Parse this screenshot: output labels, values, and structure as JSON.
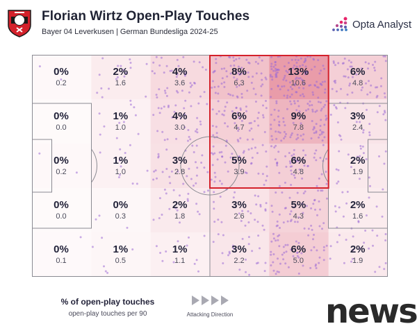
{
  "header": {
    "title": "Florian Wirtz Open-Play Touches",
    "subtitle": "Bayer 04 Leverkusen | German Bundesliga 2024-25",
    "brand": "Opta Analyst",
    "crest_icon": "bayer-leverkusen-crest-icon",
    "brand_icon": "opta-dots-icon"
  },
  "chart_data": {
    "type": "heatmap",
    "columns": 6,
    "rows": 5,
    "grid": [
      [
        {
          "pct": "0%",
          "per90": "0.2"
        },
        {
          "pct": "2%",
          "per90": "1.6"
        },
        {
          "pct": "4%",
          "per90": "3.6"
        },
        {
          "pct": "8%",
          "per90": "6.3"
        },
        {
          "pct": "13%",
          "per90": "10.6"
        },
        {
          "pct": "6%",
          "per90": "4.8"
        }
      ],
      [
        {
          "pct": "0%",
          "per90": "0.0"
        },
        {
          "pct": "1%",
          "per90": "1.0"
        },
        {
          "pct": "4%",
          "per90": "3.0"
        },
        {
          "pct": "6%",
          "per90": "4.7"
        },
        {
          "pct": "9%",
          "per90": "7.8"
        },
        {
          "pct": "3%",
          "per90": "2.4"
        }
      ],
      [
        {
          "pct": "0%",
          "per90": "0.2"
        },
        {
          "pct": "1%",
          "per90": "1.0"
        },
        {
          "pct": "3%",
          "per90": "2.8"
        },
        {
          "pct": "5%",
          "per90": "3.9"
        },
        {
          "pct": "6%",
          "per90": "4.8"
        },
        {
          "pct": "2%",
          "per90": "1.9"
        }
      ],
      [
        {
          "pct": "0%",
          "per90": "0.0"
        },
        {
          "pct": "0%",
          "per90": "0.3"
        },
        {
          "pct": "2%",
          "per90": "1.8"
        },
        {
          "pct": "3%",
          "per90": "2.6"
        },
        {
          "pct": "5%",
          "per90": "4.3"
        },
        {
          "pct": "2%",
          "per90": "1.6"
        }
      ],
      [
        {
          "pct": "0%",
          "per90": "0.1"
        },
        {
          "pct": "1%",
          "per90": "0.5"
        },
        {
          "pct": "1%",
          "per90": "1.1"
        },
        {
          "pct": "3%",
          "per90": "2.2"
        },
        {
          "pct": "6%",
          "per90": "5.0"
        },
        {
          "pct": "2%",
          "per90": "1.9"
        }
      ]
    ],
    "highlight_box": {
      "col_start": 3,
      "col_end": 4,
      "row_start": 0,
      "row_end": 2
    },
    "colors": {
      "heat": "#d9546b",
      "dots": "#9c6cd6",
      "highlight": "#d4212b",
      "lines": "#8a8a92"
    }
  },
  "legend": {
    "main": "% of open-play touches",
    "sub": "open-play touches per 90",
    "direction": "Attacking Direction"
  },
  "watermark": "news"
}
